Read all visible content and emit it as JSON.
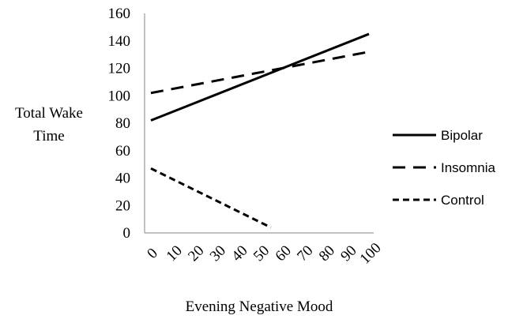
{
  "chart_data": {
    "type": "line",
    "title": "",
    "xlabel": "Evening Negative Mood",
    "ylabel_lines": [
      "Total Wake",
      "Time"
    ],
    "x_ticks": [
      "0",
      "10",
      "20",
      "30",
      "40",
      "50",
      "60",
      "70",
      "80",
      "90",
      "100"
    ],
    "y_ticks": [
      "0",
      "20",
      "40",
      "60",
      "80",
      "100",
      "120",
      "140",
      "160"
    ],
    "xlim": [
      0,
      100
    ],
    "ylim": [
      0,
      160
    ],
    "grid": false,
    "legend_position": "right",
    "series": [
      {
        "name": "Bipolar",
        "style": "solid",
        "x": [
          0,
          100
        ],
        "y": [
          82,
          145
        ]
      },
      {
        "name": "Insomnia",
        "style": "long-dash",
        "x": [
          0,
          100
        ],
        "y": [
          102,
          132
        ]
      },
      {
        "name": "Control",
        "style": "short-dash",
        "x": [
          0,
          55
        ],
        "y": [
          47,
          4
        ]
      }
    ],
    "colors": {
      "line": "#000000",
      "axis": "#858585"
    }
  }
}
